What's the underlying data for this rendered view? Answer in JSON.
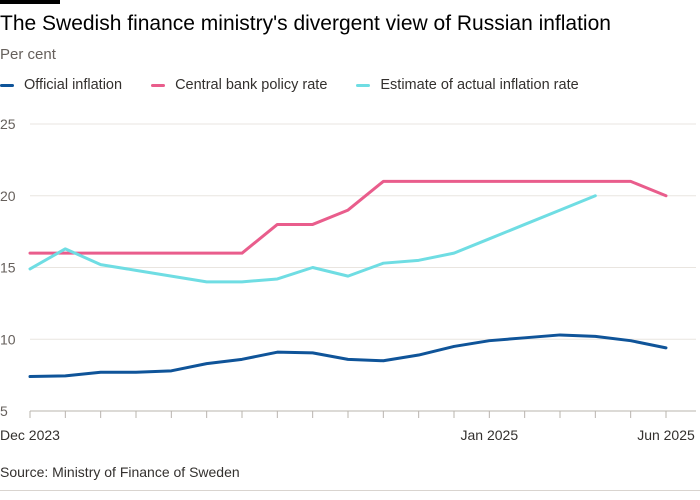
{
  "chart_data": {
    "type": "line",
    "title": "The Swedish finance ministry's divergent view of Russian inflation",
    "subtitle": "Per cent",
    "xlabel": "",
    "ylabel": "",
    "x": [
      "2023-12",
      "2024-01",
      "2024-02",
      "2024-03",
      "2024-04",
      "2024-05",
      "2024-06",
      "2024-07",
      "2024-08",
      "2024-09",
      "2024-10",
      "2024-11",
      "2024-12",
      "2025-01",
      "2025-02",
      "2025-03",
      "2025-04",
      "2025-05",
      "2025-06"
    ],
    "x_tick_labels": [
      {
        "x": "2023-12",
        "label": "Dec 2023"
      },
      {
        "x": "2025-01",
        "label": "Jan 2025"
      },
      {
        "x": "2025-06",
        "label": "Jun 2025"
      }
    ],
    "ylim": [
      5,
      25
    ],
    "yticks": [
      5,
      10,
      15,
      20,
      25
    ],
    "grid": true,
    "legend_position": "top-left",
    "series": [
      {
        "name": "Official inflation",
        "color": "#0f5499",
        "values": [
          7.4,
          7.45,
          7.7,
          7.7,
          7.8,
          8.3,
          8.6,
          9.1,
          9.05,
          8.6,
          8.5,
          8.9,
          9.5,
          9.9,
          10.1,
          10.3,
          10.2,
          9.9,
          9.4
        ]
      },
      {
        "name": "Central bank policy rate",
        "color": "#e95d8c",
        "values": [
          16,
          16,
          16,
          16,
          16,
          16,
          16,
          18,
          18,
          19,
          21,
          21,
          21,
          21,
          21,
          21,
          21,
          21,
          20
        ]
      },
      {
        "name": "Estimate of actual inflation rate",
        "color": "#6fdde3",
        "values": [
          14.9,
          16.3,
          15.2,
          14.8,
          14.4,
          14.0,
          14.0,
          14.2,
          15.0,
          14.4,
          15.3,
          15.5,
          16.0,
          17.0,
          18.0,
          19.0,
          20.0,
          null,
          null
        ]
      }
    ]
  },
  "footer": {
    "source": "Source: Ministry of Finance of Sweden"
  },
  "colors": {
    "grid": "#e9e5e0",
    "axis": "#b9b4ae",
    "tick_text": "#66605c"
  }
}
